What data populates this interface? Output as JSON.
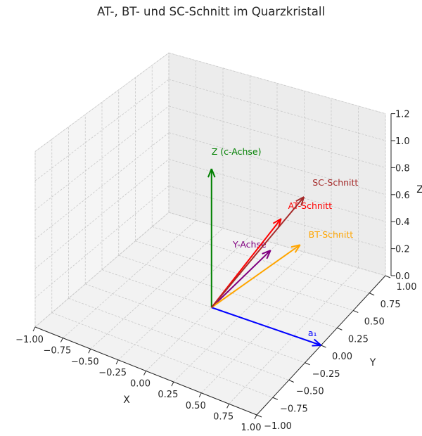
{
  "chart_data": {
    "type": "3d-quiver",
    "title": "AT-, BT- und SC-Schnitt im Quarzkristall",
    "xlabel": "X",
    "ylabel": "Y",
    "zlabel": "Z",
    "xlim": [
      -1,
      1
    ],
    "ylim": [
      -1,
      1
    ],
    "zlim": [
      0,
      1.2
    ],
    "grid": true,
    "xticks": [
      "−1.00",
      "−0.75",
      "−0.50",
      "−0.25",
      "0.00",
      "0.25",
      "0.50",
      "0.75",
      "1.00"
    ],
    "yticks": [
      "−1.00",
      "−0.75",
      "−0.50",
      "−0.25",
      "0.00",
      "0.25",
      "0.50",
      "0.75",
      "1.00"
    ],
    "zticks": [
      "0.0",
      "0.2",
      "0.4",
      "0.6",
      "0.8",
      "1.0",
      "1.2"
    ],
    "vectors": [
      {
        "label": "a₁",
        "color": "#0000ff",
        "origin": [
          0,
          0,
          0
        ],
        "vector": [
          1.0,
          0.0,
          0.0
        ]
      },
      {
        "label": "Y-Achse",
        "color": "#800080",
        "origin": [
          0,
          0,
          0
        ],
        "vector": [
          0.0,
          0.9,
          0.0
        ]
      },
      {
        "label": "Z (c-Achse)",
        "color": "#008000",
        "origin": [
          0,
          0,
          0
        ],
        "vector": [
          0.0,
          0.0,
          1.0
        ]
      },
      {
        "label": "AT-Schnitt",
        "color": "#ff0000",
        "origin": [
          0,
          0,
          0
        ],
        "vector": [
          0.0,
          1.06,
          0.16
        ]
      },
      {
        "label": "BT-Schnitt",
        "color": "#ffa500",
        "origin": [
          0,
          0,
          0
        ],
        "vector": [
          0.17,
          1.07,
          0.0
        ]
      },
      {
        "label": "SC-Schnitt",
        "color": "#a52a2a",
        "origin": [
          0,
          0,
          0
        ],
        "vector": [
          0.0,
          1.41,
          0.16
        ]
      }
    ]
  }
}
